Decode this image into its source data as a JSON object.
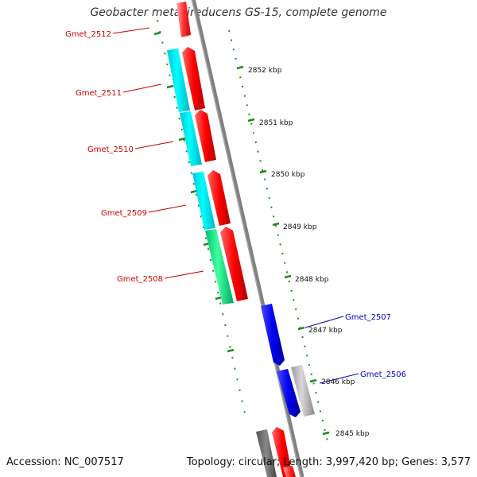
{
  "title": "Geobacter metallireducens GS-15, complete genome",
  "footer": {
    "accession": "Accession: NC_007517",
    "summary": "Topology: circular; Length: 3,997,420 bp; Genes: 3,577"
  },
  "colors": {
    "backbone": "#808080",
    "tick": "#1a8c1a",
    "forward_gene": "#ff0000",
    "reverse_gene": "#0000ff",
    "cog_cyan": "#00ffff",
    "cog_green": "#00ee88",
    "cog_gray": "#bbbbbb",
    "label_red": "#cc0000",
    "label_blue": "#0000cc"
  },
  "scale_labels": [
    "2852 kbp",
    "2851 kbp",
    "2850 kbp",
    "2849 kbp",
    "2848 kbp",
    "2847 kbp",
    "2846 kbp",
    "2845 kbp"
  ],
  "gene_labels": [
    {
      "text": "Gmet_2512",
      "strand": "forward"
    },
    {
      "text": "Gmet_2511",
      "strand": "forward"
    },
    {
      "text": "Gmet_2510",
      "strand": "forward"
    },
    {
      "text": "Gmet_2509",
      "strand": "forward"
    },
    {
      "text": "Gmet_2508",
      "strand": "forward"
    },
    {
      "text": "Gmet_2507",
      "strand": "reverse"
    },
    {
      "text": "Gmet_2506",
      "strand": "reverse"
    }
  ]
}
